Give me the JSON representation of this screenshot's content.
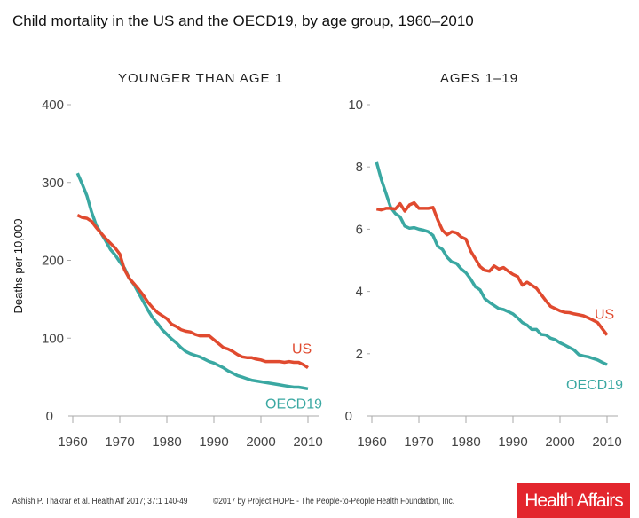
{
  "title": "Child mortality in the US and the OECD19, by age group, 1960–2010",
  "footer": {
    "citation": "Ashish P. Thakrar et al. Health Aff 2017; 37:1 140-49",
    "copyright": "©2017 by Project HOPE - The People-to-People Health Foundation, Inc.",
    "logo": "Health Affairs",
    "logo_color": "#e3262d"
  },
  "chart_data": [
    {
      "type": "line",
      "title": "YOUNGER THAN AGE 1",
      "ylabel": "Deaths per 10,000",
      "xlim": [
        1960,
        2010
      ],
      "ylim": [
        0,
        400
      ],
      "xticks": [
        1960,
        1970,
        1980,
        1990,
        2000,
        2010
      ],
      "yticks": [
        0,
        100,
        200,
        300,
        400
      ],
      "grid": false,
      "x": [
        1961,
        1962,
        1963,
        1964,
        1965,
        1966,
        1967,
        1968,
        1969,
        1970,
        1971,
        1972,
        1973,
        1974,
        1975,
        1976,
        1977,
        1978,
        1979,
        1980,
        1981,
        1982,
        1983,
        1984,
        1985,
        1986,
        1987,
        1988,
        1989,
        1990,
        1991,
        1992,
        1993,
        1994,
        1995,
        1996,
        1997,
        1998,
        1999,
        2000,
        2001,
        2002,
        2003,
        2004,
        2005,
        2006,
        2007,
        2008,
        2009,
        2010
      ],
      "series": [
        {
          "name": "US",
          "color": "#e04a2f",
          "values": [
            258,
            255,
            254,
            250,
            242,
            235,
            228,
            222,
            216,
            208,
            188,
            177,
            170,
            163,
            155,
            146,
            139,
            133,
            129,
            125,
            118,
            115,
            111,
            109,
            108,
            105,
            103,
            103,
            103,
            98,
            93,
            88,
            86,
            83,
            79,
            76,
            75,
            75,
            73,
            72,
            70,
            70,
            70,
            70,
            69,
            70,
            69,
            69,
            66,
            62
          ]
        },
        {
          "name": "OECD19",
          "color": "#3aa8a2",
          "values": [
            312,
            298,
            283,
            262,
            245,
            235,
            225,
            214,
            207,
            198,
            190,
            177,
            169,
            158,
            147,
            136,
            126,
            119,
            111,
            105,
            99,
            94,
            88,
            83,
            80,
            78,
            76,
            73,
            70,
            68,
            65,
            62,
            58,
            55,
            52,
            50,
            48,
            46,
            45,
            44,
            43,
            42,
            41,
            40,
            39,
            38,
            37,
            37,
            36,
            35
          ]
        }
      ]
    },
    {
      "type": "line",
      "title": "AGES 1–19",
      "ylabel": "",
      "xlim": [
        1960,
        2010
      ],
      "ylim": [
        0,
        10
      ],
      "xticks": [
        1960,
        1970,
        1980,
        1990,
        2000,
        2010
      ],
      "yticks": [
        0,
        2,
        4,
        6,
        8,
        10
      ],
      "grid": false,
      "x": [
        1961,
        1962,
        1963,
        1964,
        1965,
        1966,
        1967,
        1968,
        1969,
        1970,
        1971,
        1972,
        1973,
        1974,
        1975,
        1976,
        1977,
        1978,
        1979,
        1980,
        1981,
        1982,
        1983,
        1984,
        1985,
        1986,
        1987,
        1988,
        1989,
        1990,
        1991,
        1992,
        1993,
        1994,
        1995,
        1996,
        1997,
        1998,
        1999,
        2000,
        2001,
        2002,
        2003,
        2004,
        2005,
        2006,
        2007,
        2008,
        2009,
        2010
      ],
      "series": [
        {
          "name": "US",
          "color": "#e04a2f",
          "values": [
            6.65,
            6.62,
            6.67,
            6.67,
            6.65,
            6.82,
            6.58,
            6.78,
            6.85,
            6.67,
            6.67,
            6.67,
            6.7,
            6.3,
            5.97,
            5.82,
            5.92,
            5.88,
            5.75,
            5.68,
            5.3,
            5.05,
            4.8,
            4.68,
            4.65,
            4.82,
            4.72,
            4.77,
            4.65,
            4.55,
            4.48,
            4.2,
            4.3,
            4.2,
            4.1,
            3.9,
            3.7,
            3.52,
            3.45,
            3.38,
            3.33,
            3.32,
            3.28,
            3.25,
            3.22,
            3.15,
            3.08,
            3.0,
            2.8,
            2.6
          ]
        },
        {
          "name": "OECD19",
          "color": "#3aa8a2",
          "values": [
            8.15,
            7.6,
            7.15,
            6.7,
            6.5,
            6.4,
            6.1,
            6.03,
            6.05,
            6.0,
            5.97,
            5.92,
            5.8,
            5.45,
            5.35,
            5.1,
            4.95,
            4.9,
            4.72,
            4.6,
            4.4,
            4.15,
            4.05,
            3.77,
            3.65,
            3.55,
            3.45,
            3.42,
            3.35,
            3.28,
            3.15,
            3.0,
            2.92,
            2.78,
            2.78,
            2.62,
            2.6,
            2.5,
            2.45,
            2.35,
            2.28,
            2.2,
            2.12,
            1.97,
            1.93,
            1.9,
            1.85,
            1.8,
            1.72,
            1.65
          ]
        }
      ]
    }
  ]
}
